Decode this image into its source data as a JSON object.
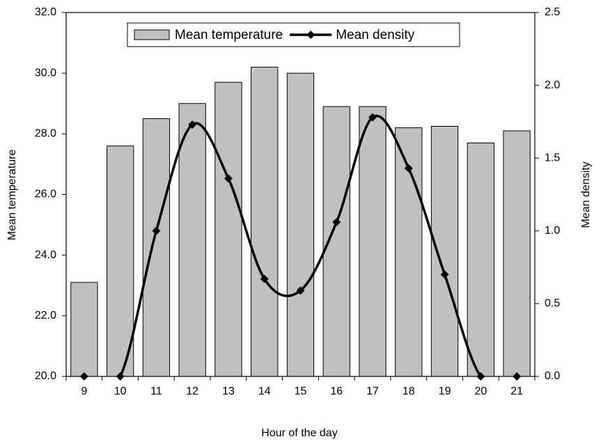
{
  "chart_data": {
    "type": "bar-line",
    "x_label": "Hour of the day",
    "y_label": "Mean temperature",
    "y2_label": "Mean density",
    "categories": [
      "9",
      "10",
      "11",
      "12",
      "13",
      "14",
      "15",
      "16",
      "17",
      "18",
      "19",
      "20",
      "21"
    ],
    "series": [
      {
        "name": "Mean temperature",
        "type": "bar",
        "color": "#c0c0c0",
        "values": [
          23.1,
          27.6,
          28.5,
          29.0,
          29.7,
          30.2,
          30.0,
          28.9,
          28.9,
          28.2,
          28.25,
          27.7,
          28.1
        ]
      },
      {
        "name": "Mean density",
        "type": "line",
        "color": "#000000",
        "axis": "y2",
        "smooth": true,
        "values": [
          0,
          0,
          1.0,
          1.73,
          1.36,
          0.67,
          0.59,
          1.06,
          1.78,
          1.43,
          0.7,
          0,
          0
        ]
      }
    ],
    "ylim": [
      20,
      32
    ],
    "yticks": [
      {
        "value": 20,
        "label": "20.0"
      },
      {
        "value": 22,
        "label": "22.0"
      },
      {
        "value": 24,
        "label": "24.0"
      },
      {
        "value": 26,
        "label": "26.0"
      },
      {
        "value": 28,
        "label": "28.0"
      },
      {
        "value": 30,
        "label": "30.0"
      },
      {
        "value": 32,
        "label": "32.0"
      }
    ],
    "y2lim": [
      0,
      2.5
    ],
    "y2ticks": [
      {
        "value": 0,
        "label": "0.0"
      },
      {
        "value": 0.5,
        "label": "0.5"
      },
      {
        "value": 1,
        "label": "1.0"
      },
      {
        "value": 1.5,
        "label": "1.5"
      },
      {
        "value": 2,
        "label": "2.0"
      },
      {
        "value": 2.5,
        "label": "2.5"
      }
    ],
    "legend": "top"
  }
}
